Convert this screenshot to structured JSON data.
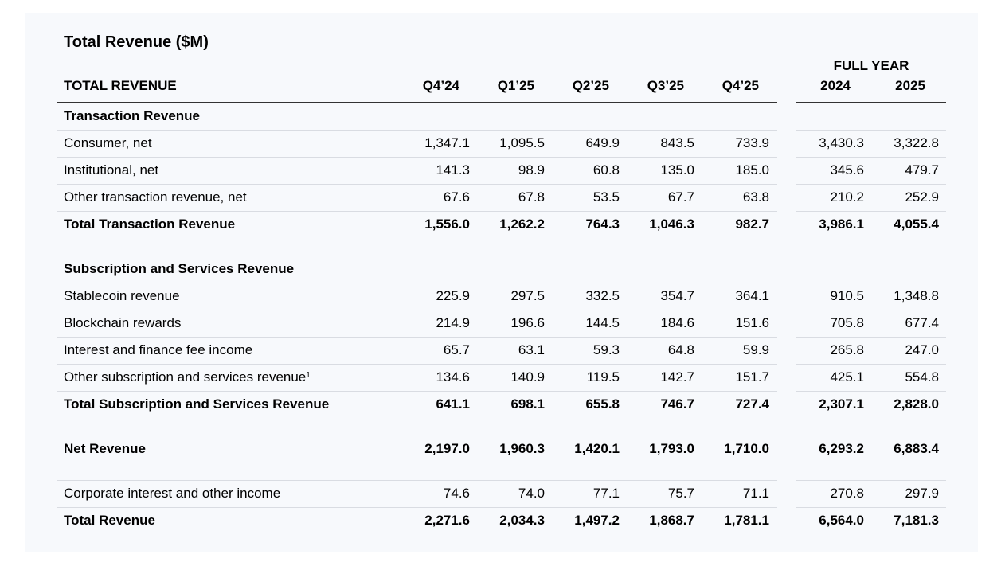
{
  "title": "Total Revenue ($M)",
  "header": {
    "label": "TOTAL REVENUE",
    "full_year": "FULL YEAR",
    "columns": [
      "Q4’24",
      "Q1’25",
      "Q2’25",
      "Q3’25",
      "Q4’25",
      "2024",
      "2025"
    ]
  },
  "sections": {
    "transaction": {
      "heading": "Transaction Revenue",
      "rows": [
        {
          "label": "Consumer, net",
          "values": [
            "1,347.1",
            "1,095.5",
            "649.9",
            "843.5",
            "733.9",
            "3,430.3",
            "3,322.8"
          ]
        },
        {
          "label": "Institutional, net",
          "values": [
            "141.3",
            "98.9",
            "60.8",
            "135.0",
            "185.0",
            "345.6",
            "479.7"
          ]
        },
        {
          "label": "Other transaction revenue, net",
          "values": [
            "67.6",
            "67.8",
            "53.5",
            "67.7",
            "63.8",
            "210.2",
            "252.9"
          ]
        }
      ],
      "total": {
        "label": "Total Transaction Revenue",
        "values": [
          "1,556.0",
          "1,262.2",
          "764.3",
          "1,046.3",
          "982.7",
          "3,986.1",
          "4,055.4"
        ]
      }
    },
    "subscription": {
      "heading": "Subscription and Services Revenue",
      "rows": [
        {
          "label": "Stablecoin revenue",
          "values": [
            "225.9",
            "297.5",
            "332.5",
            "354.7",
            "364.1",
            "910.5",
            "1,348.8"
          ]
        },
        {
          "label": "Blockchain rewards",
          "values": [
            "214.9",
            "196.6",
            "144.5",
            "184.6",
            "151.6",
            "705.8",
            "677.4"
          ]
        },
        {
          "label": "Interest and finance fee income",
          "values": [
            "65.7",
            "63.1",
            "59.3",
            "64.8",
            "59.9",
            "265.8",
            "247.0"
          ]
        },
        {
          "label": "Other subscription and services revenue",
          "footnote": "1",
          "values": [
            "134.6",
            "140.9",
            "119.5",
            "142.7",
            "151.7",
            "425.1",
            "554.8"
          ]
        }
      ],
      "total": {
        "label": "Total Subscription and Services Revenue",
        "values": [
          "641.1",
          "698.1",
          "655.8",
          "746.7",
          "727.4",
          "2,307.1",
          "2,828.0"
        ]
      }
    }
  },
  "net_revenue": {
    "label": "Net Revenue",
    "values": [
      "2,197.0",
      "1,960.3",
      "1,420.1",
      "1,793.0",
      "1,710.0",
      "6,293.2",
      "6,883.4"
    ]
  },
  "corporate": {
    "label": "Corporate interest and other income",
    "values": [
      "74.6",
      "74.0",
      "77.1",
      "75.7",
      "71.1",
      "270.8",
      "297.9"
    ]
  },
  "total_revenue": {
    "label": "Total Revenue",
    "values": [
      "2,271.6",
      "2,034.3",
      "1,497.2",
      "1,868.7",
      "1,781.1",
      "6,564.0",
      "7,181.3"
    ]
  }
}
